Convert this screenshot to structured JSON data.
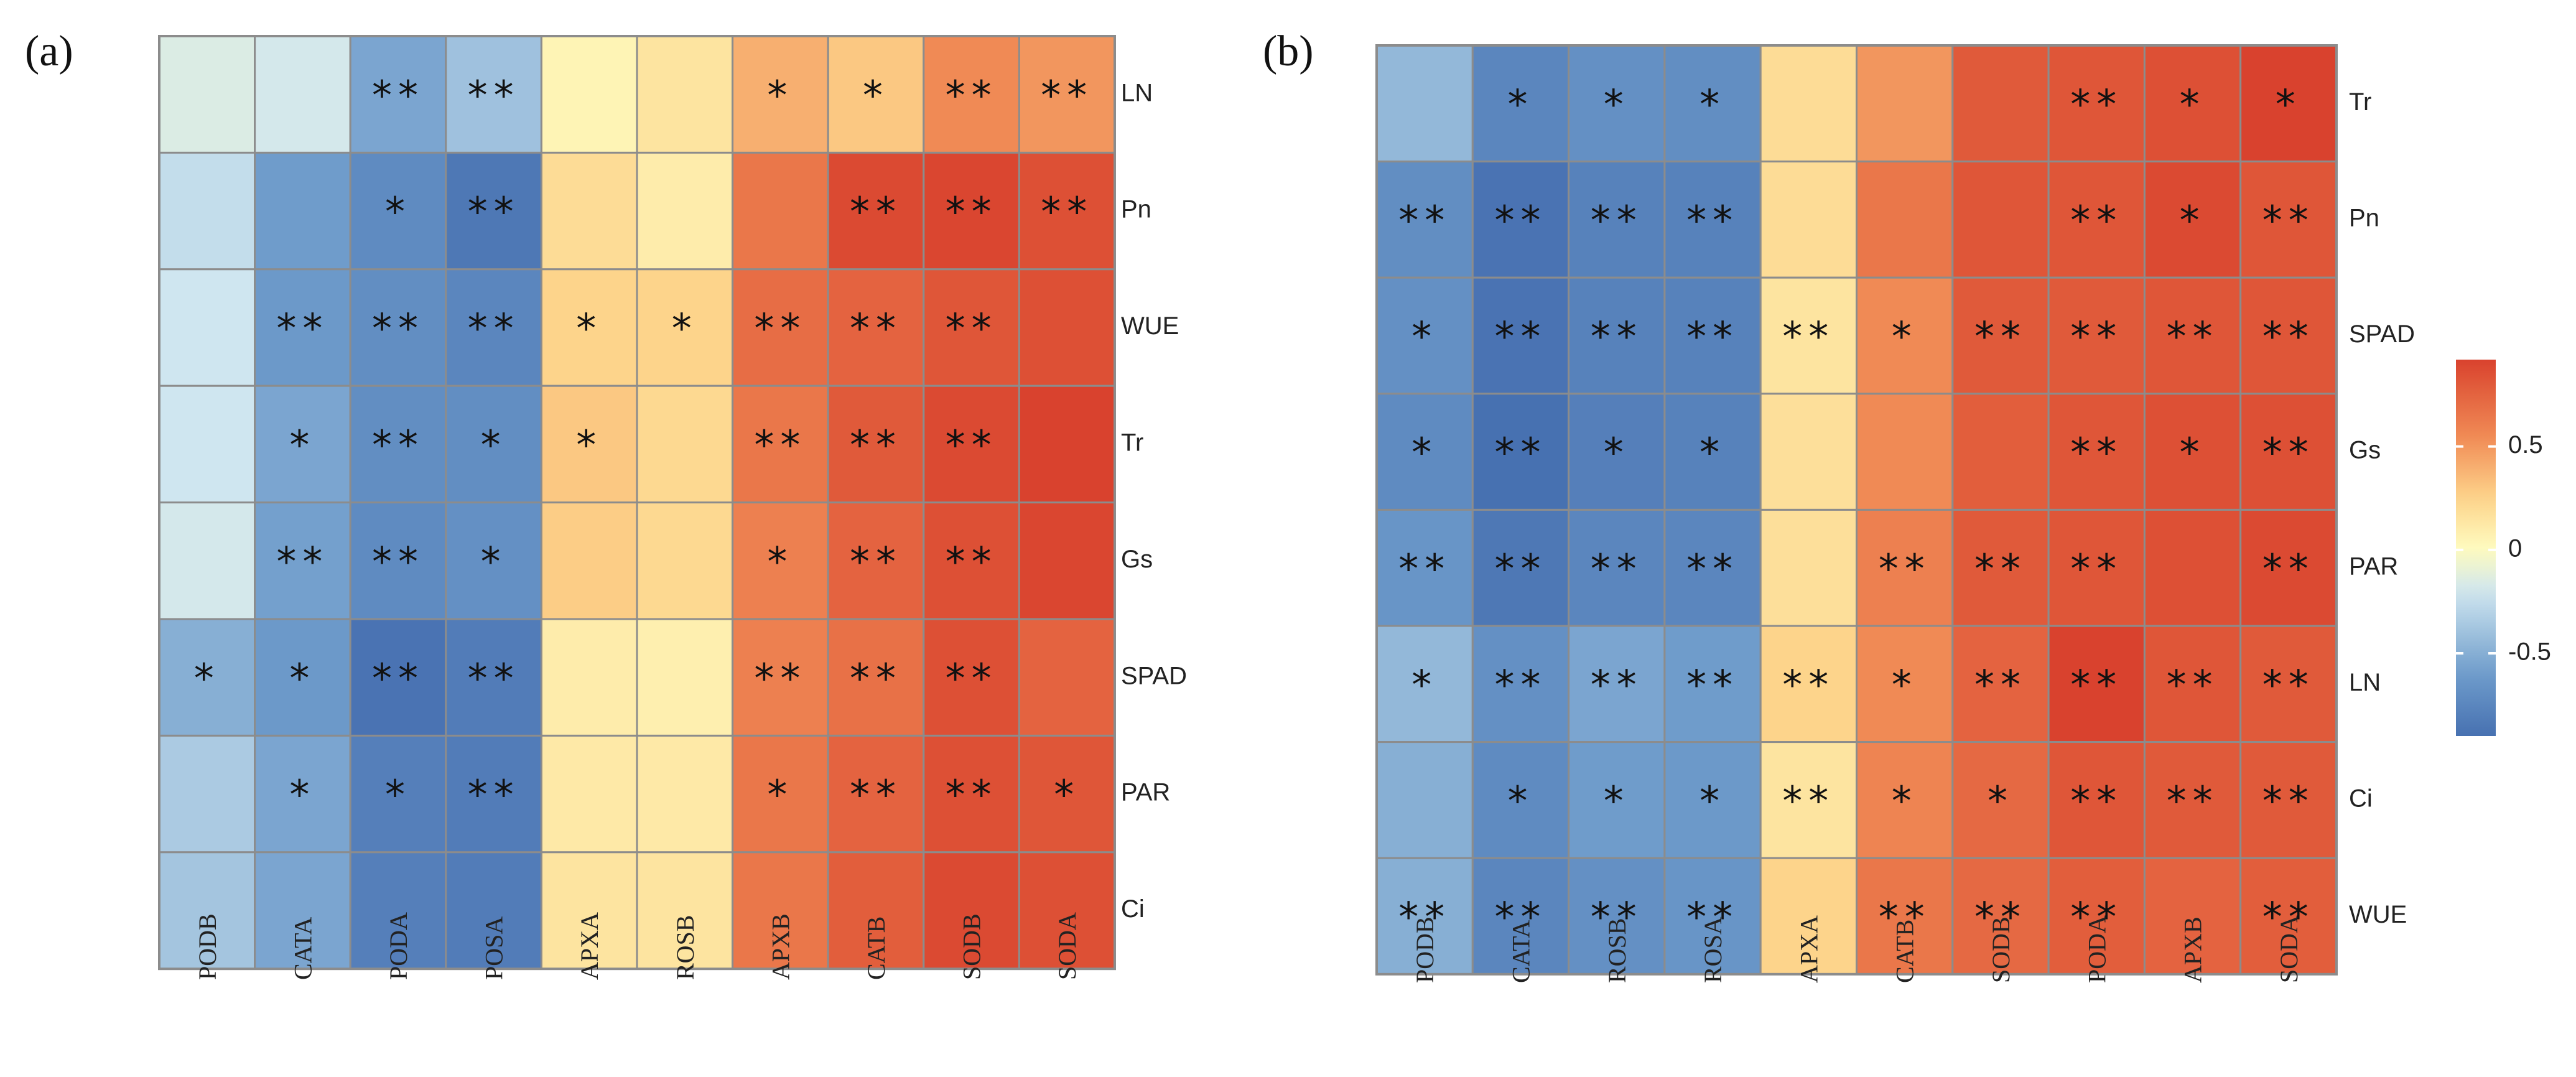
{
  "chart_data": [
    {
      "type": "heatmap",
      "panel_label": "(a)",
      "rows": [
        "LN",
        "Pn",
        "WUE",
        "Tr",
        "Gs",
        "SPAD",
        "PAR",
        "Ci"
      ],
      "columns": [
        "PODB",
        "CATA",
        "PODA",
        "POSA",
        "APXA",
        "ROSB",
        "APXB",
        "CATB",
        "SODB",
        "SODA"
      ],
      "values": [
        [
          -0.15,
          -0.18,
          -0.55,
          -0.4,
          0.05,
          0.15,
          0.4,
          0.3,
          0.55,
          0.5
        ],
        [
          -0.25,
          -0.6,
          -0.72,
          -0.85,
          0.2,
          0.1,
          0.65,
          0.88,
          0.9,
          0.85
        ],
        [
          -0.2,
          -0.62,
          -0.7,
          -0.75,
          0.25,
          0.25,
          0.7,
          0.75,
          0.82,
          0.85
        ],
        [
          -0.2,
          -0.55,
          -0.7,
          -0.7,
          0.3,
          0.22,
          0.65,
          0.8,
          0.88,
          0.92
        ],
        [
          -0.18,
          -0.58,
          -0.72,
          -0.68,
          0.28,
          0.22,
          0.6,
          0.75,
          0.85,
          0.9
        ],
        [
          -0.5,
          -0.62,
          -0.88,
          -0.82,
          0.1,
          0.08,
          0.6,
          0.68,
          0.85,
          0.75
        ],
        [
          -0.35,
          -0.55,
          -0.8,
          -0.82,
          0.12,
          0.12,
          0.65,
          0.75,
          0.85,
          0.82
        ],
        [
          -0.38,
          -0.55,
          -0.8,
          -0.82,
          0.15,
          0.15,
          0.65,
          0.78,
          0.88,
          0.85
        ]
      ],
      "significance": [
        [
          "",
          "",
          "**",
          "**",
          "",
          "",
          "*",
          "*",
          "**",
          "**"
        ],
        [
          "",
          "",
          "*",
          "**",
          "",
          "",
          "",
          "**",
          "**",
          "**"
        ],
        [
          "",
          "**",
          "**",
          "**",
          "*",
          "*",
          "**",
          "**",
          "**",
          ""
        ],
        [
          "",
          "*",
          "**",
          "*",
          "*",
          "",
          "**",
          "**",
          "**",
          ""
        ],
        [
          "",
          "**",
          "**",
          "*",
          "",
          "",
          "*",
          "**",
          "**",
          ""
        ],
        [
          "*",
          "*",
          "**",
          "**",
          "",
          "",
          "**",
          "**",
          "**",
          ""
        ],
        [
          "",
          "*",
          "*",
          "**",
          "",
          "",
          "*",
          "**",
          "**",
          "*"
        ],
        [
          "",
          "",
          "",
          "",
          "",
          "",
          "",
          "",
          "",
          ""
        ]
      ]
    },
    {
      "type": "heatmap",
      "panel_label": "(b)",
      "rows": [
        "Tr",
        "Pn",
        "SPAD",
        "Gs",
        "PAR",
        "LN",
        "Ci",
        "WUE"
      ],
      "columns": [
        "PODB",
        "CATA",
        "ROSB",
        "ROSA",
        "APXA",
        "CATB",
        "SODB",
        "PODA",
        "APXB",
        "SODA"
      ],
      "values": [
        [
          -0.45,
          -0.75,
          -0.68,
          -0.7,
          0.2,
          0.5,
          0.8,
          0.82,
          0.85,
          0.92
        ],
        [
          -0.7,
          -0.88,
          -0.78,
          -0.78,
          0.2,
          0.65,
          0.82,
          0.82,
          0.88,
          0.82
        ],
        [
          -0.68,
          -0.88,
          -0.78,
          -0.78,
          0.15,
          0.55,
          0.8,
          0.8,
          0.82,
          0.82
        ],
        [
          -0.72,
          -0.9,
          -0.8,
          -0.78,
          0.18,
          0.55,
          0.78,
          0.82,
          0.85,
          0.85
        ],
        [
          -0.65,
          -0.85,
          -0.75,
          -0.75,
          0.18,
          0.6,
          0.8,
          0.82,
          0.85,
          0.88
        ],
        [
          -0.45,
          -0.68,
          -0.55,
          -0.6,
          0.25,
          0.55,
          0.75,
          0.92,
          0.82,
          0.8
        ],
        [
          -0.5,
          -0.72,
          -0.6,
          -0.62,
          0.15,
          0.58,
          0.72,
          0.82,
          0.8,
          0.8
        ],
        [
          -0.5,
          -0.75,
          -0.68,
          -0.65,
          0.25,
          0.65,
          0.72,
          0.78,
          0.75,
          0.78
        ]
      ],
      "significance": [
        [
          "",
          "*",
          "*",
          "*",
          "",
          "",
          "",
          "**",
          "*",
          "*"
        ],
        [
          "**",
          "**",
          "**",
          "**",
          "",
          "",
          "",
          "**",
          "*",
          "**"
        ],
        [
          "*",
          "**",
          "**",
          "**",
          "**",
          "*",
          "**",
          "**",
          "**",
          "**"
        ],
        [
          "*",
          "**",
          "*",
          "*",
          "",
          "",
          "",
          "**",
          "*",
          "**"
        ],
        [
          "**",
          "**",
          "**",
          "**",
          "",
          "**",
          "**",
          "**",
          "",
          "**"
        ],
        [
          "*",
          "**",
          "**",
          "**",
          "**",
          "*",
          "**",
          "**",
          "**",
          "**"
        ],
        [
          "",
          "*",
          "*",
          "*",
          "**",
          "*",
          "*",
          "**",
          "**",
          "**"
        ],
        [
          "**",
          "**",
          "**",
          "**",
          "",
          "**",
          "**",
          "**",
          "",
          "**"
        ]
      ]
    }
  ],
  "colorbar": {
    "range": [
      -0.9,
      0.92
    ],
    "ticks": [
      {
        "value": 0.5,
        "label": "0.5"
      },
      {
        "value": 0,
        "label": "0"
      },
      {
        "value": -0.5,
        "label": "-0.5"
      }
    ],
    "colors": {
      "neg": "#4273b3",
      "mid": "#fefcc0",
      "pos": "#d43325"
    }
  }
}
